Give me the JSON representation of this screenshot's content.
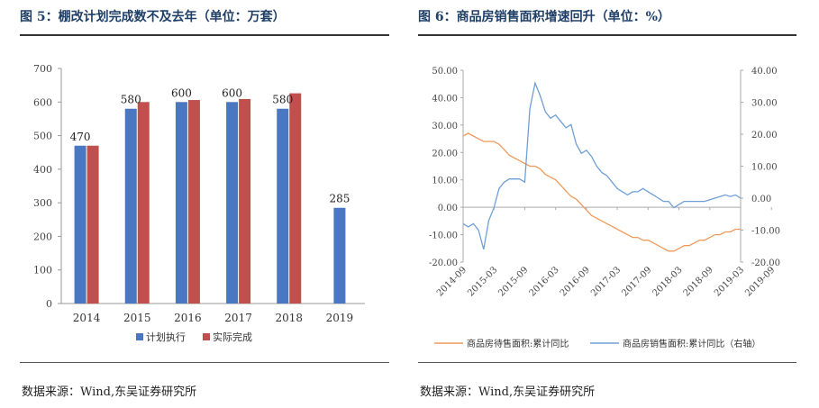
{
  "left": {
    "title": "图 5：棚改计划完成数不及去年（单位：万套）",
    "source": "数据来源：Wind,东吴证券研究所"
  },
  "right": {
    "title": "图 6：商品房销售面积增速回升（单位：%）",
    "source": "数据来源：Wind,东吴证券研究所"
  },
  "colors": {
    "blue": "#4a77c2",
    "red": "#c0504d",
    "orange": "#f09a5c",
    "lineblue": "#6f9fd8"
  },
  "chart_data": [
    {
      "type": "bar",
      "title": "棚改计划完成数不及去年（单位：万套）",
      "categories": [
        "2014",
        "2015",
        "2016",
        "2017",
        "2018",
        "2019"
      ],
      "ylim": [
        0,
        700
      ],
      "yticks": [
        0,
        100,
        200,
        300,
        400,
        500,
        600,
        700
      ],
      "series": [
        {
          "name": "计划执行",
          "values": [
            470,
            580,
            600,
            600,
            580,
            285
          ]
        },
        {
          "name": "实际完成",
          "values": [
            470,
            600,
            606,
            609,
            626,
            null
          ]
        }
      ],
      "data_labels": [
        {
          "category": "2014",
          "value": 470,
          "text": "470"
        },
        {
          "category": "2015",
          "value": 580,
          "text": "580"
        },
        {
          "category": "2016",
          "value": 600,
          "text": "600"
        },
        {
          "category": "2017",
          "value": 600,
          "text": "600"
        },
        {
          "category": "2018",
          "value": 580,
          "text": "580"
        },
        {
          "category": "2019",
          "value": 285,
          "text": "285"
        }
      ],
      "legend": [
        "计划执行",
        "实际完成"
      ]
    },
    {
      "type": "line",
      "title": "商品房销售面积增速回升（单位：%）",
      "x_start": "2014-09",
      "x_tick_labels": [
        "2014-09",
        "2015-03",
        "2015-09",
        "2016-03",
        "2016-09",
        "2017-03",
        "2017-09",
        "2018-03",
        "2018-09",
        "2019-03",
        "2019-09"
      ],
      "ylim_left": [
        -20,
        50
      ],
      "yticks_left": [
        "-20.00",
        "-10.00",
        "0.00",
        "10.00",
        "20.00",
        "30.00",
        "40.00",
        "50.00"
      ],
      "ylim_right": [
        -20,
        40
      ],
      "yticks_right": [
        "-20.00",
        "-10.00",
        "0.00",
        "10.00",
        "20.00",
        "30.00",
        "40.00"
      ],
      "series": [
        {
          "name": "商品房待售面积:累计同比",
          "axis": "left",
          "values": [
            26,
            27,
            26,
            25,
            24,
            24,
            24,
            23,
            21,
            19,
            18,
            17,
            16,
            15,
            15,
            14,
            12,
            11,
            10,
            8,
            6,
            4,
            3,
            1,
            -1,
            -3,
            -4,
            -5,
            -6,
            -7,
            -8,
            -9,
            -10,
            -11,
            -11,
            -12,
            -12,
            -13,
            -14,
            -15,
            -16,
            -16,
            -15,
            -14,
            -14,
            -13,
            -12,
            -12,
            -11,
            -10,
            -10,
            -9,
            -9,
            -8,
            -8
          ]
        },
        {
          "name": "商品房销售面积:累计同比",
          "axis": "right",
          "values": [
            -8,
            -9,
            -8,
            -10,
            -16,
            -7,
            -3,
            3,
            5,
            6,
            6,
            6,
            5,
            28,
            36,
            32,
            27,
            25,
            26,
            24,
            22,
            23,
            17,
            14,
            15,
            13,
            10,
            8,
            7,
            5,
            3,
            2,
            1,
            2,
            2,
            3,
            2,
            1,
            0,
            -1,
            -1,
            -3,
            -2,
            -1,
            -1,
            -1,
            -1,
            -1,
            -0.5,
            0,
            0.5,
            1,
            0.5,
            1,
            0
          ]
        }
      ],
      "legend": [
        "商品房待售面积:累计同比",
        "商品房销售面积:累计同比（右轴）"
      ]
    }
  ]
}
